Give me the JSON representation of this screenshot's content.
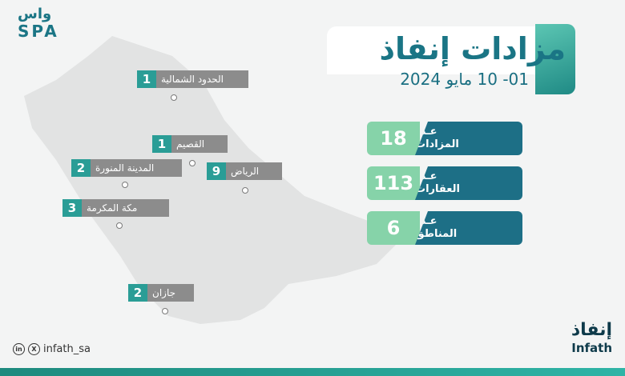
{
  "logo": {
    "mark": "واس",
    "word": "SPA"
  },
  "title": "مزادات إنفاذ",
  "date_range": "01- 10 مايو 2024",
  "stats": [
    {
      "value": "18",
      "label_top": "عـدد",
      "label_bottom": "المزادات"
    },
    {
      "value": "113",
      "label_top": "عـدد",
      "label_bottom": "العقارات"
    },
    {
      "value": "6",
      "label_top": "عـدد",
      "label_bottom": "المناطق"
    }
  ],
  "regions": [
    {
      "count": "1",
      "name": "الحدود الشمالية"
    },
    {
      "count": "1",
      "name": "القصيم"
    },
    {
      "count": "2",
      "name": "المدينة المنورة"
    },
    {
      "count": "9",
      "name": "الرياض"
    },
    {
      "count": "3",
      "name": "مكة المكرمة"
    },
    {
      "count": "2",
      "name": "جازان"
    }
  ],
  "social": {
    "handle": "infath_sa",
    "icons": [
      "linkedin-icon",
      "x-icon"
    ]
  },
  "brand": {
    "arabic": "إنفاذ",
    "english": "Infath"
  },
  "colors": {
    "teal": "#2a9d96",
    "dark_teal": "#1d6f86",
    "mint": "#86d3a9",
    "label_gray": "#8c8c8c",
    "map_gray": "#e4e5e5"
  }
}
